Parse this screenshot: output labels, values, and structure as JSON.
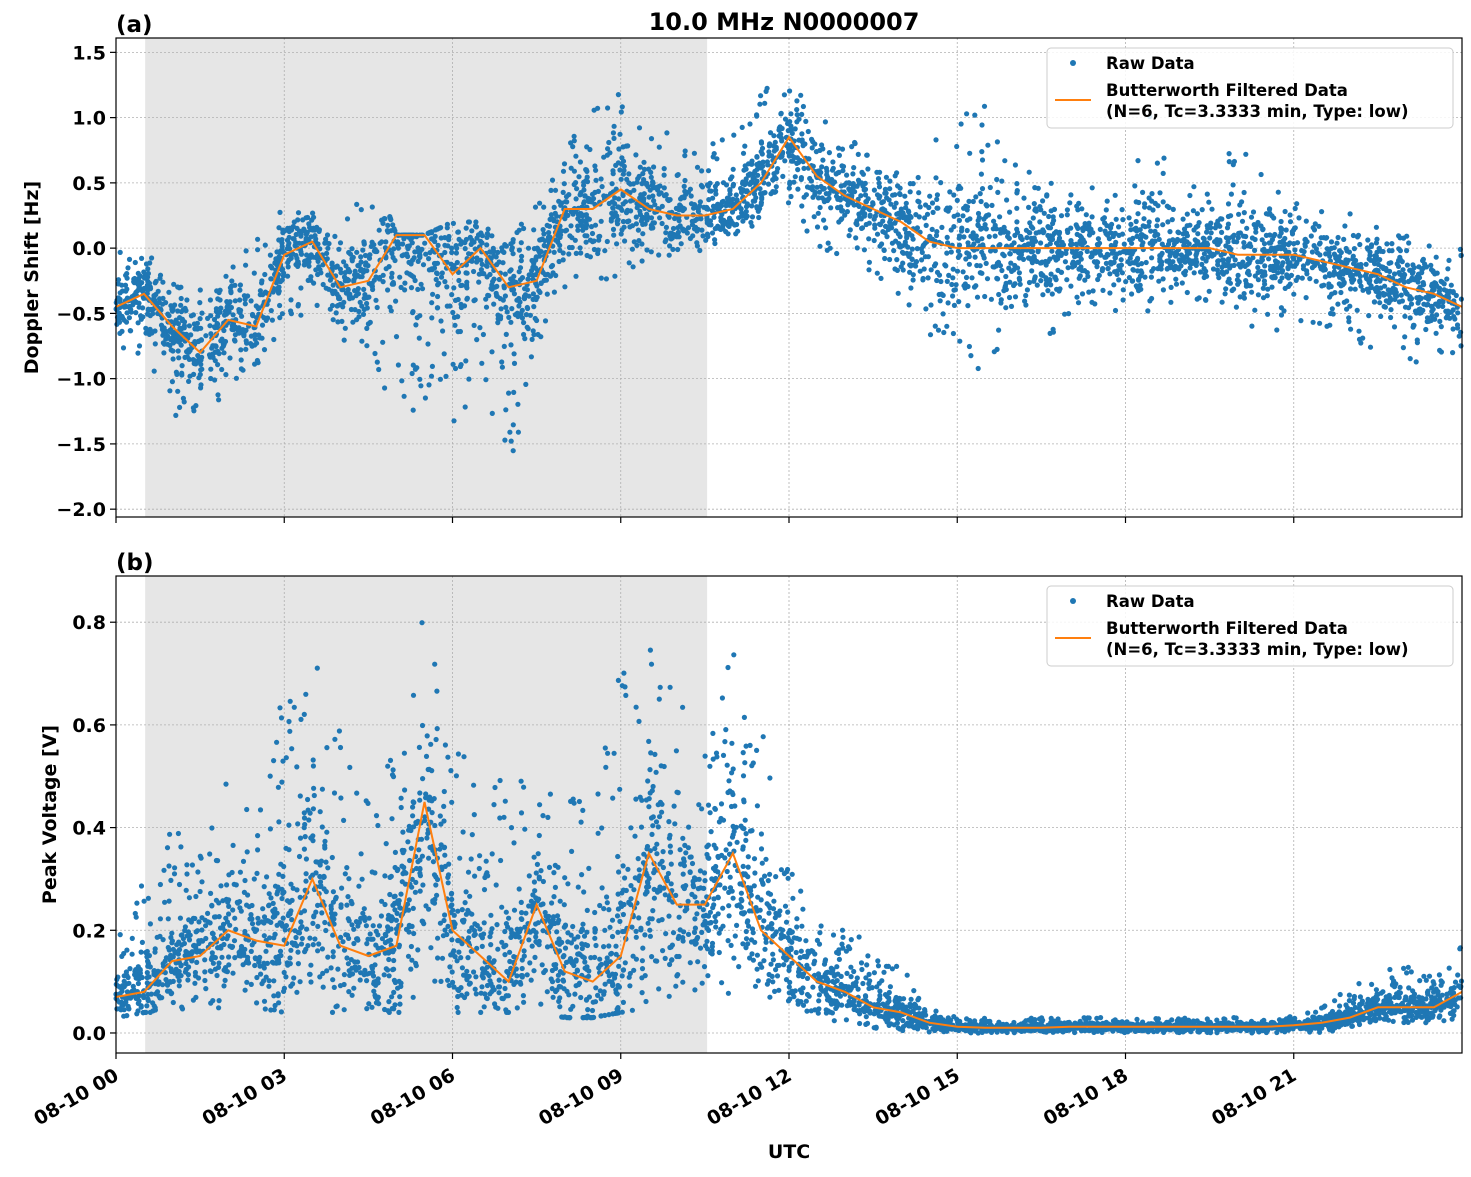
{
  "figure": {
    "title": "10.0 MHz N0000007",
    "xlabel": "UTC"
  },
  "colors": {
    "raw": "#1f77b4",
    "filtered": "#ff7f0e",
    "shade": "#e6e6e6",
    "grid": "#b0b0b0"
  },
  "legend": {
    "raw": "Raw Data",
    "filtered_line1": "Butterworth Filtered Data",
    "filtered_line2": "(N=6, Tc=3.3333 min, Type: low)",
    "placement": "top-right"
  },
  "x_ticks": [
    "08-10 00",
    "08-10 03",
    "08-10 06",
    "08-10 09",
    "08-10 12",
    "08-10 15",
    "08-10 18",
    "08-10 21"
  ],
  "chart_data": [
    {
      "type": "scatter+line",
      "panel_label": "(a)",
      "ylabel": "Doppler Shift [Hz]",
      "x_unit": "hours UTC on 08-10",
      "xlim": [
        0,
        24
      ],
      "ylim": [
        -2.06,
        1.61
      ],
      "yticks": [
        "1.5",
        "1.0",
        "0.5",
        "0.0",
        "−0.5",
        "−1.0",
        "−1.5",
        "−2.0"
      ],
      "ytick_values": [
        1.5,
        1.0,
        0.5,
        0.0,
        -0.5,
        -1.0,
        -1.5,
        -2.0
      ],
      "grid": true,
      "shaded_region_hours": [
        0.52,
        10.54
      ],
      "x": [
        0,
        0.5,
        1,
        1.5,
        2,
        2.5,
        3,
        3.5,
        4,
        4.5,
        5,
        5.5,
        6,
        6.5,
        7,
        7.5,
        8,
        8.5,
        9,
        9.5,
        10,
        10.5,
        11,
        11.5,
        12,
        12.5,
        13,
        13.5,
        14,
        14.5,
        15,
        15.5,
        16,
        16.5,
        17,
        17.5,
        18,
        18.5,
        19,
        19.5,
        20,
        20.5,
        21,
        21.5,
        22,
        22.5,
        23,
        23.5,
        24
      ],
      "series": [
        {
          "name": "Butterworth Filtered Data",
          "values": [
            -0.45,
            -0.35,
            -0.6,
            -0.8,
            -0.55,
            -0.6,
            -0.05,
            0.05,
            -0.3,
            -0.25,
            0.1,
            0.1,
            -0.2,
            0.0,
            -0.3,
            -0.25,
            0.3,
            0.3,
            0.45,
            0.3,
            0.25,
            0.25,
            0.3,
            0.5,
            0.85,
            0.55,
            0.4,
            0.3,
            0.2,
            0.05,
            0.0,
            0.0,
            0.0,
            0.0,
            0.0,
            0.0,
            0.0,
            0.0,
            0.0,
            0.0,
            -0.05,
            -0.05,
            -0.05,
            -0.1,
            -0.15,
            -0.2,
            -0.3,
            -0.35,
            -0.45
          ]
        },
        {
          "name": "Raw Data",
          "min": [
            -0.9,
            -0.8,
            -1.3,
            -1.3,
            -1.1,
            -0.9,
            -0.6,
            -0.5,
            -0.7,
            -0.8,
            -1.3,
            -1.3,
            -1.5,
            -1.0,
            -1.8,
            -0.8,
            -0.3,
            -0.2,
            -0.3,
            -0.1,
            -0.1,
            0.0,
            0.1,
            0.2,
            0.3,
            0.0,
            -0.1,
            -0.2,
            -0.4,
            -0.7,
            -0.7,
            -1.0,
            -0.7,
            -0.8,
            -0.5,
            -0.5,
            -0.5,
            -0.5,
            -0.5,
            -0.4,
            -0.5,
            -0.7,
            -0.6,
            -0.6,
            -0.7,
            -0.8,
            -0.9,
            -0.9,
            -0.9
          ],
          "max": [
            0.0,
            0.0,
            -0.2,
            -0.3,
            -0.2,
            0.2,
            0.3,
            0.3,
            0.1,
            0.7,
            0.1,
            0.1,
            0.2,
            0.2,
            0.0,
            0.4,
            0.8,
            1.2,
            1.2,
            0.9,
            0.9,
            0.8,
            0.9,
            1.2,
            1.4,
            1.0,
            0.9,
            0.7,
            0.6,
            0.8,
            1.0,
            1.2,
            0.8,
            0.6,
            0.5,
            0.5,
            0.6,
            1.1,
            0.5,
            0.5,
            0.9,
            0.5,
            0.4,
            0.3,
            0.3,
            0.2,
            0.1,
            0.0,
            0.0
          ]
        }
      ]
    },
    {
      "type": "scatter+line",
      "panel_label": "(b)",
      "ylabel": "Peak Voltage [V]",
      "x_unit": "hours UTC on 08-10",
      "xlim": [
        0,
        24
      ],
      "ylim": [
        -0.039,
        0.89
      ],
      "yticks": [
        "0.8",
        "0.6",
        "0.4",
        "0.2",
        "0.0"
      ],
      "ytick_values": [
        0.8,
        0.6,
        0.4,
        0.2,
        0.0
      ],
      "grid": true,
      "shaded_region_hours": [
        0.52,
        10.54
      ],
      "x": [
        0,
        0.5,
        1,
        1.5,
        2,
        2.5,
        3,
        3.5,
        4,
        4.5,
        5,
        5.5,
        6,
        6.5,
        7,
        7.5,
        8,
        8.5,
        9,
        9.5,
        10,
        10.5,
        11,
        11.5,
        12,
        12.5,
        13,
        13.5,
        14,
        14.5,
        15,
        15.5,
        16,
        16.5,
        17,
        17.5,
        18,
        18.5,
        19,
        19.5,
        20,
        20.5,
        21,
        21.5,
        22,
        22.5,
        23,
        23.5,
        24
      ],
      "series": [
        {
          "name": "Butterworth Filtered Data",
          "values": [
            0.07,
            0.08,
            0.14,
            0.15,
            0.2,
            0.18,
            0.17,
            0.3,
            0.17,
            0.15,
            0.17,
            0.45,
            0.2,
            0.15,
            0.1,
            0.25,
            0.12,
            0.1,
            0.15,
            0.35,
            0.25,
            0.25,
            0.35,
            0.2,
            0.15,
            0.1,
            0.08,
            0.05,
            0.04,
            0.02,
            0.012,
            0.01,
            0.01,
            0.01,
            0.012,
            0.012,
            0.012,
            0.012,
            0.012,
            0.012,
            0.012,
            0.012,
            0.015,
            0.02,
            0.03,
            0.05,
            0.05,
            0.05,
            0.08
          ]
        },
        {
          "name": "Raw Data",
          "min": [
            0.03,
            0.04,
            0.04,
            0.04,
            0.05,
            0.05,
            0.04,
            0.04,
            0.04,
            0.04,
            0.04,
            0.04,
            0.04,
            0.04,
            0.04,
            0.04,
            0.03,
            0.03,
            0.04,
            0.05,
            0.06,
            0.06,
            0.07,
            0.06,
            0.05,
            0.03,
            0.02,
            0.01,
            0.005,
            0.002,
            0.0,
            0.0,
            0.0,
            0.0,
            0.0,
            0.0,
            0.0,
            0.0,
            0.0,
            0.0,
            0.0,
            0.0,
            0.0,
            0.0,
            0.01,
            0.02,
            0.02,
            0.02,
            0.03
          ],
          "max": [
            0.18,
            0.3,
            0.4,
            0.35,
            0.5,
            0.42,
            0.68,
            0.77,
            0.6,
            0.45,
            0.58,
            0.85,
            0.6,
            0.45,
            0.52,
            0.48,
            0.49,
            0.45,
            0.72,
            0.77,
            0.68,
            0.56,
            0.78,
            0.6,
            0.32,
            0.25,
            0.23,
            0.16,
            0.13,
            0.06,
            0.03,
            0.03,
            0.03,
            0.03,
            0.03,
            0.03,
            0.03,
            0.03,
            0.03,
            0.03,
            0.03,
            0.03,
            0.035,
            0.05,
            0.09,
            0.12,
            0.13,
            0.12,
            0.17
          ]
        }
      ]
    }
  ]
}
